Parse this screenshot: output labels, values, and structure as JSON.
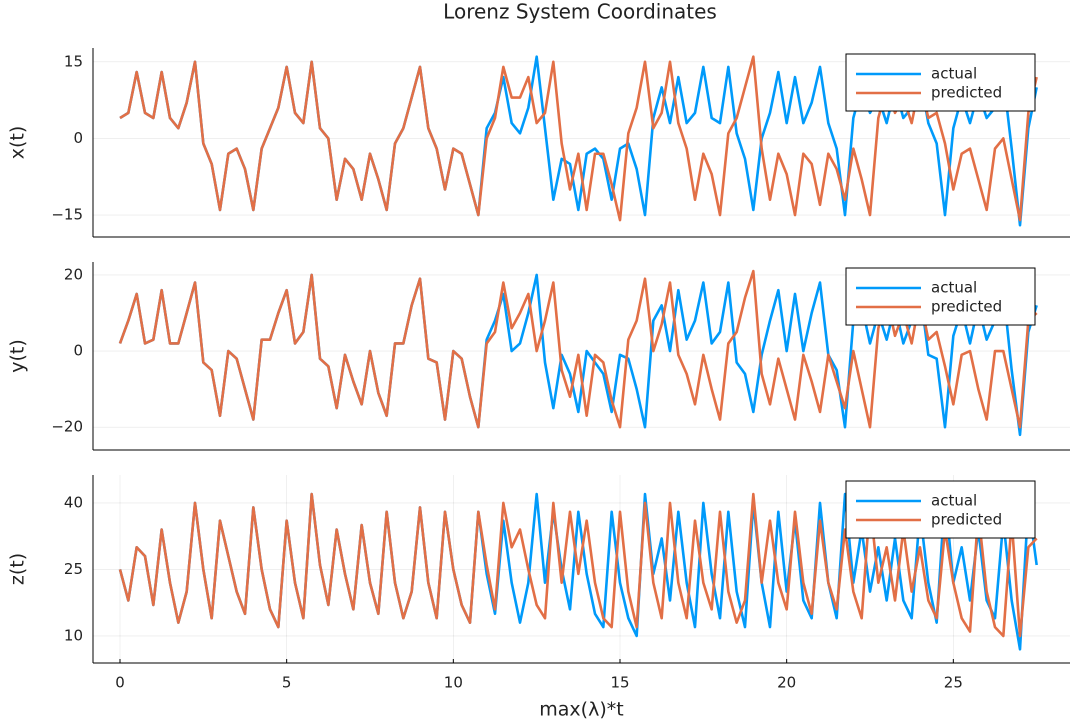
{
  "chart_data": [
    {
      "type": "line",
      "title": "Lorenz System Coordinates",
      "ylabel": "x(t)",
      "legend": "top right",
      "grid": true,
      "xlim": [
        -0.81,
        28.5
      ],
      "ylim": [
        -19.3,
        17.7
      ],
      "yticks": [
        {
          "value": -15,
          "label": "−15"
        },
        0,
        15
      ],
      "x": [
        0,
        0.25,
        0.5,
        0.75,
        1,
        1.25,
        1.5,
        1.75,
        2,
        2.25,
        2.5,
        2.75,
        3,
        3.25,
        3.5,
        3.75,
        4,
        4.25,
        4.5,
        4.75,
        5,
        5.25,
        5.5,
        5.75,
        6,
        6.25,
        6.5,
        6.75,
        7,
        7.25,
        7.5,
        7.75,
        8,
        8.25,
        8.5,
        8.75,
        9,
        9.25,
        9.5,
        9.75,
        10,
        10.25,
        10.5,
        10.75,
        11,
        11.25,
        11.5,
        11.75,
        12,
        12.25,
        12.5,
        12.75,
        13,
        13.25,
        13.5,
        13.75,
        14,
        14.25,
        14.5,
        14.75,
        15,
        15.25,
        15.5,
        15.75,
        16,
        16.25,
        16.5,
        16.75,
        17,
        17.25,
        17.5,
        17.75,
        18,
        18.25,
        18.5,
        18.75,
        19,
        19.25,
        19.5,
        19.75,
        20,
        20.25,
        20.5,
        20.75,
        21,
        21.25,
        21.5,
        21.75,
        22,
        22.25,
        22.5,
        22.75,
        23,
        23.25,
        23.5,
        23.75,
        24,
        24.25,
        24.5,
        24.75,
        25,
        25.25,
        25.5,
        25.75,
        26,
        26.25,
        26.5,
        26.75,
        27,
        27.25,
        27.5
      ],
      "series": [
        {
          "name": "actual",
          "color": "#009afa",
          "values": [
            4,
            5,
            13,
            5,
            4,
            13,
            4,
            2,
            7,
            15,
            -1,
            -5,
            -14,
            -3,
            -2,
            -6,
            -14,
            -2,
            2,
            6,
            14,
            5,
            3,
            15,
            2,
            0,
            -12,
            -4,
            -6,
            -12,
            -3,
            -8,
            -14,
            -1,
            2,
            8,
            14,
            2,
            -2,
            -10,
            -2,
            -3,
            -9,
            -15,
            2,
            5,
            12,
            3,
            1,
            6,
            16,
            2,
            -12,
            -4,
            -5,
            -14,
            -3,
            -2,
            -4,
            -12,
            -2,
            -1,
            -6,
            -15,
            4,
            10,
            3,
            12,
            3,
            5,
            14,
            4,
            3,
            14,
            1,
            -4,
            -14,
            0,
            5,
            13,
            3,
            12,
            3,
            7,
            14,
            3,
            -2,
            -15,
            4,
            10,
            5,
            8,
            3,
            10,
            4,
            6,
            12,
            3,
            -1,
            -15,
            2,
            8,
            3,
            9,
            4,
            6,
            12,
            -2,
            -17,
            2,
            10
          ]
        },
        {
          "name": "predicted",
          "color": "#e26f46",
          "values": [
            4,
            5,
            13,
            5,
            4,
            13,
            4,
            2,
            7,
            15,
            -1,
            -5,
            -14,
            -3,
            -2,
            -6,
            -14,
            -2,
            2,
            6,
            14,
            5,
            3,
            15,
            2,
            0,
            -12,
            -4,
            -6,
            -12,
            -3,
            -8,
            -14,
            -1,
            2,
            8,
            14,
            2,
            -2,
            -10,
            -2,
            -3,
            -9,
            -15,
            0,
            4,
            14,
            8,
            8,
            12,
            3,
            5,
            15,
            -1,
            -10,
            -3,
            -14,
            -3,
            -3,
            -9,
            -16,
            1,
            6,
            15,
            2,
            5,
            15,
            3,
            -2,
            -12,
            -3,
            -7,
            -15,
            1,
            4,
            10,
            16,
            -2,
            -12,
            -3,
            -7,
            -15,
            -3,
            -5,
            -13,
            -3,
            -6,
            -12,
            -2,
            -8,
            -15,
            4,
            10,
            5,
            8,
            3,
            11,
            4,
            5,
            -1,
            -10,
            -3,
            -2,
            -8,
            -14,
            -2,
            0,
            -8,
            -16,
            5,
            12
          ]
        }
      ]
    },
    {
      "type": "line",
      "ylabel": "y(t)",
      "legend": "top right",
      "grid": true,
      "xlim": [
        -0.81,
        28.5
      ],
      "ylim": [
        -26,
        23.4
      ],
      "yticks": [
        {
          "value": -20,
          "label": "−20"
        },
        0,
        20
      ],
      "x": [
        0,
        0.25,
        0.5,
        0.75,
        1,
        1.25,
        1.5,
        1.75,
        2,
        2.25,
        2.5,
        2.75,
        3,
        3.25,
        3.5,
        3.75,
        4,
        4.25,
        4.5,
        4.75,
        5,
        5.25,
        5.5,
        5.75,
        6,
        6.25,
        6.5,
        6.75,
        7,
        7.25,
        7.5,
        7.75,
        8,
        8.25,
        8.5,
        8.75,
        9,
        9.25,
        9.5,
        9.75,
        10,
        10.25,
        10.5,
        10.75,
        11,
        11.25,
        11.5,
        11.75,
        12,
        12.25,
        12.5,
        12.75,
        13,
        13.25,
        13.5,
        13.75,
        14,
        14.25,
        14.5,
        14.75,
        15,
        15.25,
        15.5,
        15.75,
        16,
        16.25,
        16.5,
        16.75,
        17,
        17.25,
        17.5,
        17.75,
        18,
        18.25,
        18.5,
        18.75,
        19,
        19.25,
        19.5,
        19.75,
        20,
        20.25,
        20.5,
        20.75,
        21,
        21.25,
        21.5,
        21.75,
        22,
        22.25,
        22.5,
        22.75,
        23,
        23.25,
        23.5,
        23.75,
        24,
        24.25,
        24.5,
        24.75,
        25,
        25.25,
        25.5,
        25.75,
        26,
        26.25,
        26.5,
        26.75,
        27,
        27.25,
        27.5
      ],
      "series": [
        {
          "name": "actual",
          "color": "#009afa",
          "values": [
            2,
            8,
            15,
            2,
            3,
            16,
            2,
            2,
            10,
            18,
            -3,
            -5,
            -17,
            0,
            -2,
            -10,
            -18,
            3,
            3,
            10,
            16,
            2,
            5,
            20,
            -2,
            -4,
            -15,
            -1,
            -8,
            -14,
            0,
            -11,
            -17,
            2,
            2,
            12,
            19,
            -2,
            -3,
            -18,
            0,
            -2,
            -12,
            -20,
            3,
            8,
            15,
            0,
            2,
            10,
            20,
            -3,
            -15,
            -1,
            -6,
            -16,
            0,
            -3,
            -6,
            -16,
            -1,
            -2,
            -10,
            -20,
            8,
            12,
            0,
            16,
            3,
            8,
            18,
            2,
            5,
            18,
            -3,
            -6,
            -16,
            -1,
            8,
            16,
            0,
            15,
            0,
            10,
            18,
            -1,
            -5,
            -20,
            8,
            12,
            2,
            10,
            3,
            12,
            2,
            8,
            16,
            -1,
            -2,
            -20,
            4,
            11,
            2,
            12,
            3,
            8,
            16,
            -5,
            -22,
            5,
            12
          ]
        },
        {
          "name": "predicted",
          "color": "#e26f46",
          "values": [
            2,
            8,
            15,
            2,
            3,
            16,
            2,
            2,
            10,
            18,
            -3,
            -5,
            -17,
            0,
            -2,
            -10,
            -18,
            3,
            3,
            10,
            16,
            2,
            5,
            20,
            -2,
            -4,
            -15,
            -1,
            -8,
            -14,
            0,
            -11,
            -17,
            2,
            2,
            12,
            19,
            -2,
            -3,
            -18,
            0,
            -2,
            -12,
            -20,
            2,
            5,
            18,
            6,
            10,
            15,
            0,
            8,
            18,
            -5,
            -12,
            -1,
            -17,
            -1,
            -3,
            -13,
            -20,
            3,
            8,
            19,
            0,
            7,
            18,
            -1,
            -6,
            -14,
            -1,
            -10,
            -18,
            2,
            5,
            14,
            21,
            -6,
            -14,
            -2,
            -10,
            -18,
            -1,
            -8,
            -16,
            -1,
            -8,
            -15,
            0,
            -10,
            -20,
            6,
            14,
            4,
            10,
            2,
            14,
            3,
            5,
            -4,
            -14,
            -1,
            0,
            -10,
            -18,
            0,
            0,
            -10,
            -20,
            8,
            10
          ]
        }
      ]
    },
    {
      "type": "line",
      "ylabel": "z(t)",
      "xlabel": "max(λ)*t",
      "legend": "top right",
      "grid": true,
      "xlim": [
        -0.81,
        28.5
      ],
      "ylim": [
        3.9,
        46.3
      ],
      "yticks": [
        10,
        25,
        40
      ],
      "xticks": [
        0,
        5,
        10,
        15,
        20,
        25
      ],
      "x": [
        0,
        0.25,
        0.5,
        0.75,
        1,
        1.25,
        1.5,
        1.75,
        2,
        2.25,
        2.5,
        2.75,
        3,
        3.25,
        3.5,
        3.75,
        4,
        4.25,
        4.5,
        4.75,
        5,
        5.25,
        5.5,
        5.75,
        6,
        6.25,
        6.5,
        6.75,
        7,
        7.25,
        7.5,
        7.75,
        8,
        8.25,
        8.5,
        8.75,
        9,
        9.25,
        9.5,
        9.75,
        10,
        10.25,
        10.5,
        10.75,
        11,
        11.25,
        11.5,
        11.75,
        12,
        12.25,
        12.5,
        12.75,
        13,
        13.25,
        13.5,
        13.75,
        14,
        14.25,
        14.5,
        14.75,
        15,
        15.25,
        15.5,
        15.75,
        16,
        16.25,
        16.5,
        16.75,
        17,
        17.25,
        17.5,
        17.75,
        18,
        18.25,
        18.5,
        18.75,
        19,
        19.25,
        19.5,
        19.75,
        20,
        20.25,
        20.5,
        20.75,
        21,
        21.25,
        21.5,
        21.75,
        22,
        22.25,
        22.5,
        22.75,
        23,
        23.25,
        23.5,
        23.75,
        24,
        24.25,
        24.5,
        24.75,
        25,
        25.25,
        25.5,
        25.75,
        26,
        26.25,
        26.5,
        26.75,
        27,
        27.25,
        27.5
      ],
      "series": [
        {
          "name": "actual",
          "color": "#009afa",
          "values": [
            25,
            18,
            30,
            28,
            17,
            34,
            22,
            13,
            20,
            40,
            25,
            14,
            36,
            28,
            20,
            15,
            39,
            25,
            16,
            12,
            36,
            22,
            14,
            42,
            26,
            17,
            34,
            24,
            16,
            35,
            22,
            15,
            38,
            22,
            14,
            20,
            39,
            22,
            14,
            38,
            25,
            17,
            13,
            38,
            24,
            15,
            36,
            22,
            13,
            22,
            42,
            22,
            38,
            25,
            16,
            38,
            24,
            15,
            12,
            38,
            22,
            14,
            10,
            42,
            24,
            32,
            18,
            38,
            22,
            12,
            40,
            24,
            14,
            38,
            20,
            12,
            40,
            22,
            12,
            38,
            20,
            36,
            18,
            14,
            40,
            22,
            14,
            42,
            22,
            34,
            20,
            30,
            18,
            32,
            18,
            14,
            38,
            22,
            13,
            42,
            22,
            30,
            18,
            34,
            18,
            14,
            36,
            18,
            7,
            40,
            26
          ]
        },
        {
          "name": "predicted",
          "color": "#e26f46",
          "values": [
            25,
            18,
            30,
            28,
            17,
            34,
            22,
            13,
            20,
            40,
            25,
            14,
            36,
            28,
            20,
            15,
            39,
            25,
            16,
            12,
            36,
            22,
            14,
            42,
            26,
            17,
            34,
            24,
            16,
            35,
            22,
            15,
            38,
            22,
            14,
            20,
            39,
            22,
            14,
            38,
            25,
            17,
            13,
            38,
            26,
            16,
            40,
            30,
            34,
            25,
            17,
            14,
            40,
            22,
            38,
            24,
            36,
            22,
            14,
            12,
            38,
            20,
            12,
            40,
            22,
            14,
            40,
            22,
            14,
            36,
            22,
            16,
            38,
            20,
            13,
            18,
            42,
            22,
            36,
            22,
            16,
            38,
            22,
            15,
            36,
            22,
            16,
            34,
            20,
            14,
            40,
            22,
            30,
            18,
            34,
            20,
            30,
            18,
            14,
            34,
            22,
            14,
            11,
            38,
            20,
            12,
            10,
            36,
            10,
            30,
            32
          ]
        }
      ]
    }
  ]
}
